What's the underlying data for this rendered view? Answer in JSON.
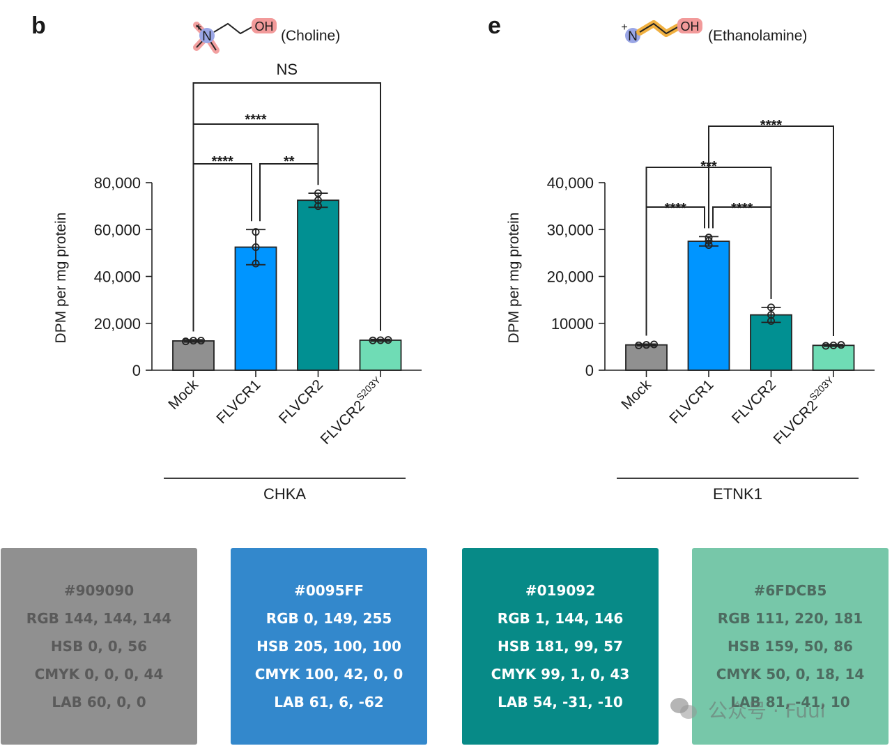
{
  "panels": [
    {
      "letter": "b",
      "molecule": {
        "nitrogen": "N",
        "charge": "+",
        "hydroxyl": "OH",
        "name": "(Choline)"
      },
      "chart_data": {
        "type": "bar",
        "categories": [
          "Mock",
          "FLVCR1",
          "FLVCR2",
          "FLVCR2"
        ],
        "category_superscripts": [
          "",
          "",
          "",
          "S203Y"
        ],
        "values": [
          12500,
          52500,
          72500,
          12800
        ],
        "error_sd": [
          500,
          7500,
          3000,
          400
        ],
        "points": [
          [
            12300,
            12600,
            12600
          ],
          [
            45500,
            52500,
            59000
          ],
          [
            70000,
            72500,
            75500
          ],
          [
            12700,
            12800,
            12900
          ]
        ],
        "colors": [
          "#909090",
          "#0095FF",
          "#019092",
          "#6FDCB5"
        ],
        "ylabel": "DPM per mg protein",
        "ylim": [
          0,
          80000
        ],
        "yticks": [
          0,
          20000,
          40000,
          60000,
          80000
        ],
        "ytick_labels": [
          "0",
          "20,000",
          "40,000",
          "60,000",
          "80,000"
        ],
        "group_label": "CHKA",
        "significance": [
          {
            "from": 0,
            "to": 1,
            "label": "****"
          },
          {
            "from": 1,
            "to": 2,
            "label": "**"
          },
          {
            "from": 0,
            "to": 2,
            "label": "****"
          },
          {
            "from": 0,
            "to": 3,
            "label": "NS"
          }
        ]
      }
    },
    {
      "letter": "e",
      "molecule": {
        "nitrogen": "N",
        "charge": "+",
        "hydroxyl": "OH",
        "name": "(Ethanolamine)"
      },
      "chart_data": {
        "type": "bar",
        "categories": [
          "Mock",
          "FLVCR1",
          "FLVCR2",
          "FLVCR2"
        ],
        "category_superscripts": [
          "",
          "",
          "",
          "S203Y"
        ],
        "values": [
          5400,
          27500,
          11800,
          5300
        ],
        "error_sd": [
          200,
          1000,
          1600,
          200
        ],
        "points": [
          [
            5300,
            5400,
            5500
          ],
          [
            26700,
            27600,
            28300
          ],
          [
            10500,
            11800,
            13400
          ],
          [
            5200,
            5300,
            5400
          ]
        ],
        "colors": [
          "#909090",
          "#0095FF",
          "#019092",
          "#6FDCB5"
        ],
        "ylabel": "DPM per mg protein",
        "ylim": [
          0,
          40000
        ],
        "yticks": [
          0,
          10000,
          20000,
          30000,
          40000
        ],
        "ytick_labels": [
          "0",
          "10000",
          "20,000",
          "30,000",
          "40,000"
        ],
        "group_label": "ETNK1",
        "significance": [
          {
            "from": 0,
            "to": 1,
            "label": "****"
          },
          {
            "from": 1,
            "to": 2,
            "label": "****"
          },
          {
            "from": 0,
            "to": 2,
            "label": "***"
          },
          {
            "from": 1,
            "to": 3,
            "label": "****"
          }
        ]
      }
    }
  ],
  "swatches": [
    {
      "hex": "#909090",
      "rgb": "RGB 144, 144, 144",
      "hsb": "HSB 0, 0, 56",
      "cmyk": "CMYK 0, 0, 0, 44",
      "lab": "LAB 60, 0, 0",
      "bg": "#909090",
      "fg": "#5a5a5a"
    },
    {
      "hex": "#0095FF",
      "rgb": "RGB 0, 149, 255",
      "hsb": "HSB 205, 100, 100",
      "cmyk": "CMYK 100, 42, 0, 0",
      "lab": "LAB 61, 6, -62",
      "bg": "#3388CC",
      "fg": "#ffffff"
    },
    {
      "hex": "#019092",
      "rgb": "RGB 1, 144, 146",
      "hsb": "HSB 181, 99, 57",
      "cmyk": "CMYK 99, 1, 0, 43",
      "lab": "LAB 54, -31, -10",
      "bg": "#078A87",
      "fg": "#ffffff"
    },
    {
      "hex": "#6FDCB5",
      "rgb": "RGB 111, 220, 181",
      "hsb": "HSB 159, 50, 86",
      "cmyk": "CMYK 50, 0, 18, 14",
      "lab": "LAB 81, -41, 10",
      "bg": "#77C7A9",
      "fg": "#4d6b60"
    }
  ],
  "watermark": {
    "text": "公众号 · Fuul",
    "icon": "wechat-icon"
  }
}
